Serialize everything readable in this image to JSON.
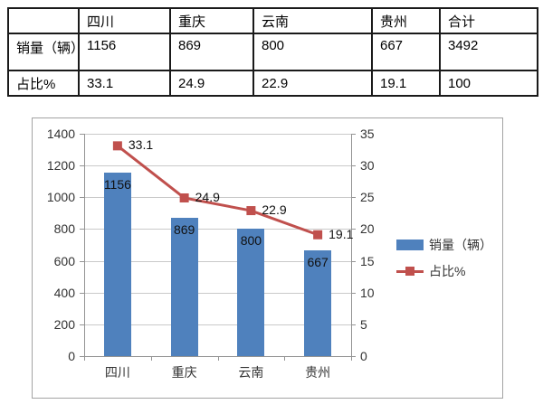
{
  "table": {
    "corner": "",
    "columns": [
      "四川",
      "重庆",
      "云南",
      "贵州",
      "合计"
    ],
    "rows": [
      {
        "label": "销量（辆）",
        "values": [
          "1156",
          "869",
          "800",
          "667",
          "3492"
        ]
      },
      {
        "label": "占比%",
        "values": [
          "33.1",
          "24.9",
          "22.9",
          "19.1",
          "100"
        ]
      }
    ]
  },
  "chart_data": {
    "type": "bar+line combo",
    "categories": [
      "四川",
      "重庆",
      "云南",
      "贵州"
    ],
    "series": [
      {
        "name": "销量（辆）",
        "type": "bar",
        "axis": "left",
        "color": "#4f81bd",
        "values": [
          1156,
          869,
          800,
          667
        ],
        "labels": [
          "1156",
          "869",
          "800",
          "667"
        ]
      },
      {
        "name": "占比%",
        "type": "line",
        "axis": "right",
        "color": "#c0504d",
        "values": [
          33.1,
          24.9,
          22.9,
          19.1
        ],
        "labels": [
          "33.1",
          "24.9",
          "22.9",
          "19.1"
        ]
      }
    ],
    "left_axis": {
      "min": 0,
      "max": 1400,
      "step": 200
    },
    "right_axis": {
      "min": 0,
      "max": 35,
      "step": 5
    },
    "grid": true,
    "legend_position": "right"
  },
  "colors": {
    "bar": "#4f81bd",
    "line": "#c0504d",
    "grid": "#c9c9c9",
    "axis": "#949494",
    "chart_border": "#a3a3a3",
    "table_border": "#1a1a1a"
  }
}
